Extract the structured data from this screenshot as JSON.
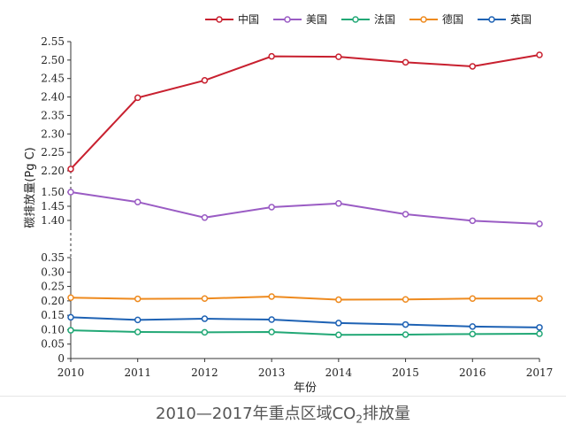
{
  "chart_data": {
    "type": "line",
    "title": "",
    "xlabel": "年份",
    "ylabel": "碳排放量(Pg C)",
    "x": [
      "2010",
      "2011",
      "2012",
      "2013",
      "2014",
      "2015",
      "2016",
      "2017"
    ],
    "series": [
      {
        "name": "中国",
        "color": "#c8202f",
        "values": [
          2.205,
          2.398,
          2.445,
          2.51,
          2.509,
          2.494,
          2.483,
          2.514
        ]
      },
      {
        "name": "美国",
        "color": "#9a5cc4",
        "values": [
          1.5,
          1.465,
          1.41,
          1.447,
          1.46,
          1.422,
          1.399,
          1.388
        ]
      },
      {
        "name": "法国",
        "color": "#22a876",
        "values": [
          0.098,
          0.092,
          0.091,
          0.092,
          0.082,
          0.083,
          0.085,
          0.086
        ]
      },
      {
        "name": "德国",
        "color": "#ee8a1e",
        "values": [
          0.211,
          0.207,
          0.208,
          0.215,
          0.204,
          0.205,
          0.208,
          0.208
        ]
      },
      {
        "name": "英国",
        "color": "#1e62b4",
        "values": [
          0.143,
          0.134,
          0.138,
          0.135,
          0.123,
          0.118,
          0.111,
          0.108
        ]
      }
    ],
    "yticks": [
      "0",
      "0.05",
      "0.10",
      "0.15",
      "0.20",
      "0.25",
      "0.30",
      "0.35",
      "1.40",
      "1.45",
      "1.50",
      "2.20",
      "2.25",
      "2.30",
      "2.35",
      "2.40",
      "2.45",
      "2.50",
      "2.55"
    ],
    "y_segments": [
      {
        "range": [
          0,
          0.35
        ]
      },
      {
        "range": [
          1.375,
          1.5
        ]
      },
      {
        "range": [
          2.2,
          2.55
        ]
      }
    ],
    "legend_position": "top",
    "grid": false
  },
  "caption": {
    "text": "2010—2017年重点区域CO",
    "subscript": "2",
    "suffix": "排放量"
  }
}
